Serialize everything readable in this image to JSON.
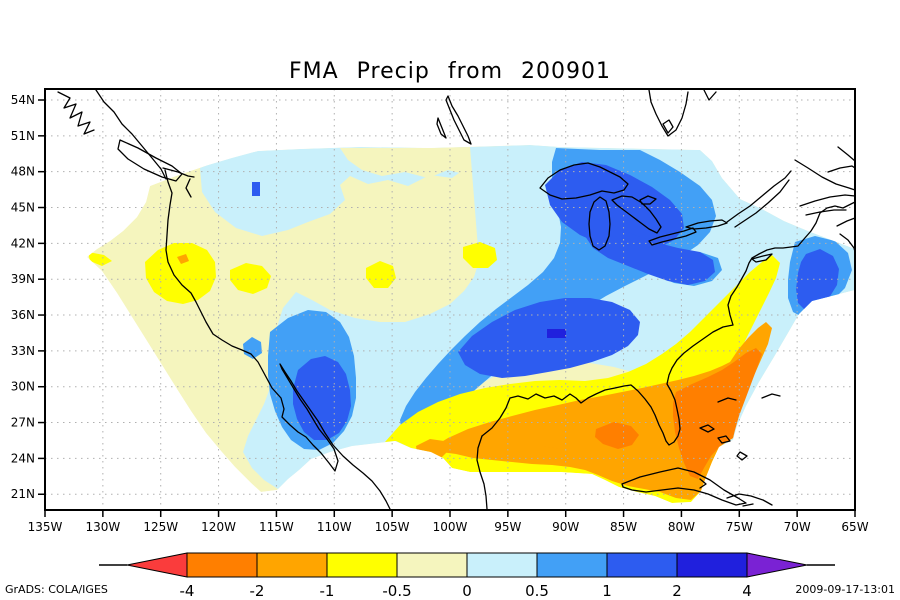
{
  "title": "FMA Precip from 200901",
  "axes": {
    "lat_labels": [
      "54N",
      "51N",
      "48N",
      "45N",
      "42N",
      "39N",
      "36N",
      "33N",
      "30N",
      "27N",
      "24N",
      "21N"
    ],
    "lon_labels": [
      "135W",
      "130W",
      "125W",
      "120W",
      "115W",
      "110W",
      "105W",
      "100W",
      "95W",
      "90W",
      "85W",
      "80W",
      "75W",
      "70W",
      "65W"
    ]
  },
  "colorbar": {
    "tick_labels": [
      "-4",
      "-2",
      "-1",
      "-0.5",
      "0",
      "0.5",
      "1",
      "2",
      "4"
    ],
    "segment_colors": [
      "#ff7f00",
      "#ffa500",
      "#ffff00",
      "#f5f5be",
      "#c9f0fb",
      "#42a0f6",
      "#2d5cf0",
      "#2020dd"
    ],
    "arrow_left_color": "#fa3c3c",
    "arrow_right_color": "#7a22d4"
  },
  "palette": {
    "cream": "#f5f5be",
    "paleblue": "#c9f0fb",
    "sky": "#42a0f6",
    "royal": "#2d5cf0",
    "deep": "#2020dd",
    "yellow": "#ffff00",
    "orange": "#ffa500",
    "darkorange": "#ff7f00",
    "red": "#fa3c3c",
    "purple": "#7a22d4",
    "grid": "#b0b0b0",
    "coast": "#000000"
  },
  "footer": {
    "credit": "GrADS: COLA/IGES",
    "timestamp": "2009-09-17-13:01"
  },
  "chart_data": {
    "type": "filled-contour-map",
    "title": "FMA Precip from 200901",
    "projection": "latlon",
    "x_axis": {
      "label_type": "longitude",
      "ticks_degW": [
        135,
        130,
        125,
        120,
        115,
        110,
        105,
        100,
        95,
        90,
        85,
        80,
        75,
        70,
        65
      ],
      "range_degW": [
        135,
        65
      ]
    },
    "y_axis": {
      "label_type": "latitude",
      "ticks_degN": [
        54,
        51,
        48,
        45,
        42,
        39,
        36,
        33,
        30,
        27,
        24,
        21
      ],
      "range_degN": [
        19.6,
        54.8
      ]
    },
    "contour_levels": [
      -4,
      -2,
      -1,
      -0.5,
      0,
      0.5,
      1,
      2,
      4
    ],
    "shade_colors_low_to_high": [
      "#fa3c3c",
      "#ff7f00",
      "#ffa500",
      "#ffff00",
      "#f5f5be",
      "#c9f0fb",
      "#42a0f6",
      "#2d5cf0",
      "#2020dd",
      "#7a22d4"
    ],
    "grid": "dotted 3deg lat x 5deg lon",
    "legend_position": "bottom horizontal color bar with end arrows",
    "features": [
      {
        "region": "Pacific Northwest / N. California coast",
        "value_range": "-1 to -0.5",
        "center": "41N 122W"
      },
      {
        "region": "Tiny dry spot on OR/CA coast",
        "value_range": "-4 to -2",
        "center": "40.5N 123.5W"
      },
      {
        "region": "Northern Plains and Canadian Prairies",
        "value_range": "0 to 0.5 patches in -0.5 to 0 field",
        "center": "48N 107W"
      },
      {
        "region": "Central Plains yellow spots (NE/KS, MO valley)",
        "value_range": "-1 to -0.5",
        "center": "40N 97W"
      },
      {
        "region": "Great Lakes (Superior, Michigan, Huron, Erie)",
        "value_range": "0.5 to 1",
        "center": "46N 86W"
      },
      {
        "region": "Mid-South to Ohio Valley diagonal wet band",
        "value_range": "1 to 2 core in 0.5 to 1 swath",
        "center": "37N 90W"
      },
      {
        "region": "Small very wet dash, mid-South",
        "value_range": "2 to 4",
        "center": "35.5N 91.5W"
      },
      {
        "region": "Arizona / New Mexico / NW Mexico wet blob",
        "value_range": "1 to 2 core in 0.5 to 1 blob",
        "center": "30N 110W"
      },
      {
        "region": "Nova Scotia / Gulf of Maine",
        "value_range": "1 to 2 core in 0.5 to 1 patch",
        "center": "44N 67W"
      },
      {
        "region": "Southeast US, Gulf Coast, Florida dry region",
        "value_range": "-2 to -1 band with -4 to -2 core over FL/GA",
        "center": "29N 82W"
      },
      {
        "region": "South Texas / NE Mexico dry spots",
        "value_range": "-2 to -1",
        "center": "26N 98W"
      },
      {
        "region": "Cuba and Bahamas",
        "value_range": "-2 to -0.5",
        "center": "23N 80W"
      }
    ]
  }
}
